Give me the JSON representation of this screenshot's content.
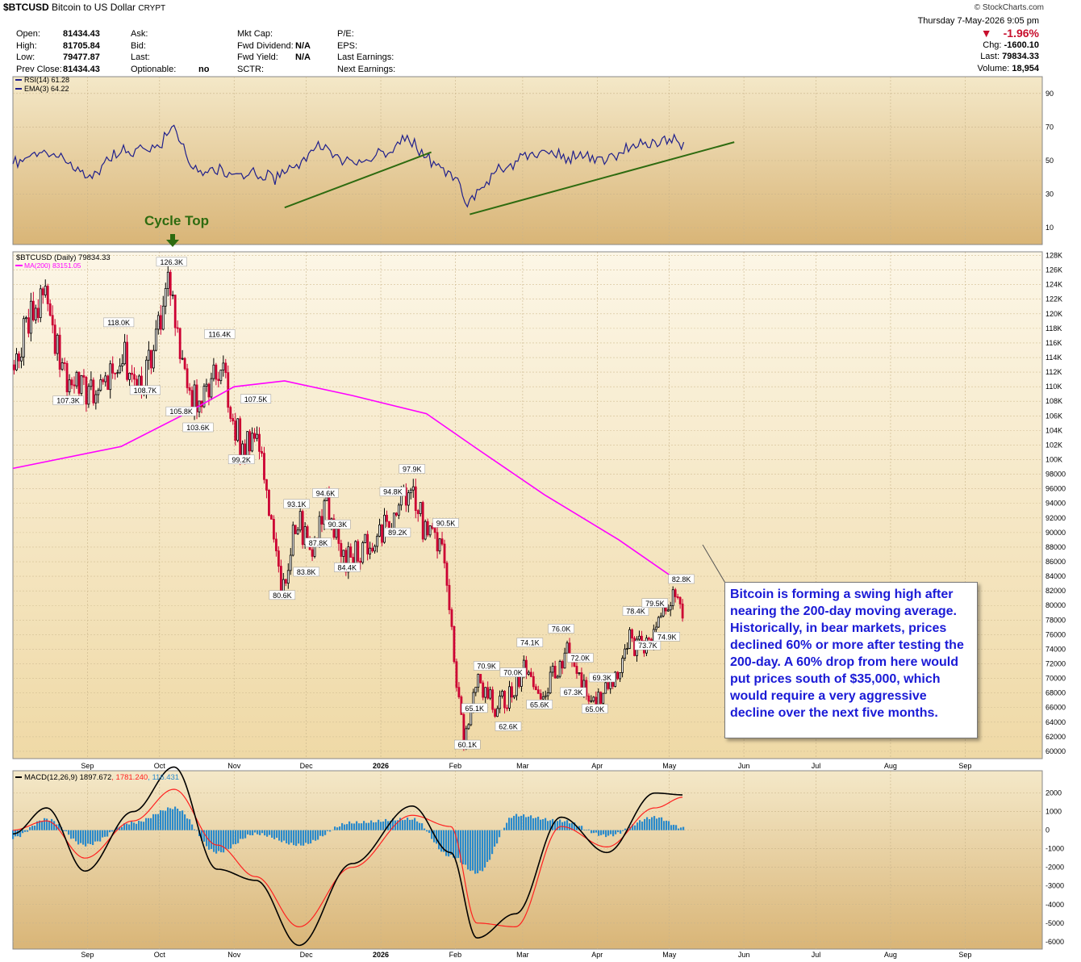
{
  "header": {
    "symbol": "$BTCUSD",
    "name": "Bitcoin to US Dollar",
    "exchange": "CRYPT",
    "source": "© StockCharts.com",
    "datetime": "Thursday  7-May-2026  9:05 pm",
    "quote_left": [
      {
        "label": "Open:",
        "value": "81434.43"
      },
      {
        "label": "High:",
        "value": "81705.84"
      },
      {
        "label": "Low:",
        "value": "79477.87"
      },
      {
        "label": "Prev Close:",
        "value": "81434.43"
      }
    ],
    "quote_mid1": [
      {
        "label": "Ask:",
        "value": ""
      },
      {
        "label": "Bid:",
        "value": ""
      },
      {
        "label": "Last:",
        "value": ""
      },
      {
        "label": "Optionable:",
        "value": "no"
      }
    ],
    "quote_mid2": [
      {
        "label": "Mkt Cap:",
        "value": ""
      },
      {
        "label": "Fwd Dividend:",
        "value": "N/A"
      },
      {
        "label": "Fwd Yield:",
        "value": "N/A"
      },
      {
        "label": "SCTR:",
        "value": ""
      }
    ],
    "quote_mid3": [
      {
        "label": "P/E:"
      },
      {
        "label": "EPS:"
      },
      {
        "label": "Last Earnings:"
      },
      {
        "label": "Next Earnings:"
      }
    ],
    "pct_change": "-1.96%",
    "quote_right": [
      {
        "label": "Chg:",
        "value": "-1600.10"
      },
      {
        "label": "Last:",
        "value": "79834.33"
      },
      {
        "label": "Volume:",
        "value": "18,954"
      }
    ]
  },
  "annotation": {
    "cycle_top": "Cycle Top",
    "callout": "Bitcoin is forming a swing high after nearing the 200-day moving average. Historically, in bear markets, prices declined 60% or more after testing the 200-day. A 60% drop from here would put prices south of $35,000, which would require a very aggressive decline over the next five months."
  },
  "colors": {
    "panel_bg": "#f3e6c2",
    "rsi": "#1f1f8c",
    "ma": "#ff00ff",
    "up": "#000000",
    "down": "#cc0033",
    "trend": "#2e6b10",
    "macd": "#000000",
    "signal": "#ff2020",
    "hist": "#2a8acb",
    "callout_text": "#1a1ad6"
  },
  "chart_data": [
    {
      "type": "line",
      "panel": "rsi",
      "legend": [
        "RSI(14) 61.28",
        "EMA(3) 64.22"
      ],
      "yticks": [
        90,
        70,
        50,
        30,
        10
      ],
      "ylim": [
        0,
        100
      ],
      "x": [
        "2025-08-01",
        "2025-08-10",
        "2025-08-20",
        "2025-09-01",
        "2025-09-15",
        "2025-10-01",
        "2025-10-06",
        "2025-10-15",
        "2025-11-01",
        "2025-11-20",
        "2025-12-05",
        "2025-12-20",
        "2026-01-05",
        "2026-01-10",
        "2026-01-20",
        "2026-02-01",
        "2026-02-05",
        "2026-02-20",
        "2026-03-05",
        "2026-03-20",
        "2026-04-05",
        "2026-04-15",
        "2026-05-01",
        "2026-05-07"
      ],
      "values": [
        48,
        55,
        52,
        40,
        55,
        58,
        70,
        45,
        42,
        40,
        58,
        50,
        55,
        65,
        52,
        40,
        25,
        45,
        55,
        52,
        50,
        58,
        63,
        61
      ],
      "trendlines": [
        {
          "x": [
            "2025-11-22",
            "2026-01-22"
          ],
          "y": [
            22,
            55
          ]
        },
        {
          "x": [
            "2026-02-07",
            "2026-05-28"
          ],
          "y": [
            18,
            61
          ]
        }
      ]
    },
    {
      "type": "candlestick",
      "panel": "price",
      "legend": [
        "$BTCUSD (Daily) 79834.33",
        "MA(200) 83151.05"
      ],
      "ylim": [
        59000,
        128500
      ],
      "yticks": [
        "128K",
        "126K",
        "124K",
        "122K",
        "120K",
        "118K",
        "116K",
        "114K",
        "112K",
        "110K",
        "108K",
        "106K",
        "104K",
        "102K",
        "100K",
        "98000",
        "96000",
        "94000",
        "92000",
        "90000",
        "88000",
        "86000",
        "84000",
        "82000",
        "80000",
        "78000",
        "76000",
        "74000",
        "72000",
        "70000",
        "68000",
        "66000",
        "64000",
        "62000",
        "60000"
      ],
      "x": [
        "2025-08-01",
        "2025-08-14",
        "2025-08-25",
        "2025-09-05",
        "2025-09-15",
        "2025-09-25",
        "2025-10-06",
        "2025-10-11",
        "2025-10-17",
        "2025-10-27",
        "2025-11-04",
        "2025-11-11",
        "2025-11-21",
        "2025-11-28",
        "2025-12-03",
        "2025-12-10",
        "2025-12-18",
        "2025-12-25",
        "2026-01-05",
        "2026-01-14",
        "2026-01-20",
        "2026-01-27",
        "2026-02-05",
        "2026-02-10",
        "2026-02-18",
        "2026-02-24",
        "2026-03-03",
        "2026-03-10",
        "2026-03-20",
        "2026-03-30",
        "2026-04-05",
        "2026-04-15",
        "2026-04-21",
        "2026-04-28",
        "2026-05-04",
        "2026-05-07"
      ],
      "close": [
        113000,
        123000,
        110000,
        108700,
        114500,
        110000,
        124500,
        112000,
        107000,
        113500,
        102000,
        103500,
        82000,
        92000,
        87800,
        94000,
        86000,
        88000,
        91000,
        96500,
        90000,
        88000,
        61000,
        70000,
        66000,
        67500,
        72000,
        68000,
        74000,
        66000,
        68000,
        75000,
        74000,
        78000,
        82000,
        79834
      ],
      "swing_labels": [
        {
          "x": "2025-08-14",
          "y": 124500,
          "text": ""
        },
        {
          "x": "2025-08-24",
          "y": 107300,
          "text": "107.3K"
        },
        {
          "x": "2025-09-14",
          "y": 118000,
          "text": "118.0K"
        },
        {
          "x": "2025-09-25",
          "y": 108700,
          "text": "108.7K"
        },
        {
          "x": "2025-10-06",
          "y": 126300,
          "text": "126.3K"
        },
        {
          "x": "2025-10-10",
          "y": 105800,
          "text": "105.8K"
        },
        {
          "x": "2025-10-17",
          "y": 103600,
          "text": "103.6K"
        },
        {
          "x": "2025-10-26",
          "y": 116400,
          "text": "116.4K"
        },
        {
          "x": "2025-11-04",
          "y": 99200,
          "text": "99.2K"
        },
        {
          "x": "2025-11-10",
          "y": 107500,
          "text": "107.5K"
        },
        {
          "x": "2025-11-21",
          "y": 80600,
          "text": "80.6K"
        },
        {
          "x": "2025-11-27",
          "y": 93100,
          "text": "93.1K"
        },
        {
          "x": "2025-12-01",
          "y": 83800,
          "text": "83.8K"
        },
        {
          "x": "2025-12-06",
          "y": 87800,
          "text": "87.8K"
        },
        {
          "x": "2025-12-09",
          "y": 94600,
          "text": "94.6K"
        },
        {
          "x": "2025-12-14",
          "y": 90300,
          "text": "90.3K"
        },
        {
          "x": "2025-12-18",
          "y": 84400,
          "text": "84.4K"
        },
        {
          "x": "2026-01-06",
          "y": 94800,
          "text": "94.8K"
        },
        {
          "x": "2026-01-08",
          "y": 89200,
          "text": "89.2K"
        },
        {
          "x": "2026-01-14",
          "y": 97900,
          "text": "97.9K"
        },
        {
          "x": "2026-01-28",
          "y": 90500,
          "text": "90.5K"
        },
        {
          "x": "2026-02-06",
          "y": 60100,
          "text": "60.1K"
        },
        {
          "x": "2026-02-09",
          "y": 65100,
          "text": "65.1K"
        },
        {
          "x": "2026-02-14",
          "y": 70900,
          "text": "70.9K"
        },
        {
          "x": "2026-02-23",
          "y": 62600,
          "text": "62.6K"
        },
        {
          "x": "2026-02-25",
          "y": 70000,
          "text": "70.0K"
        },
        {
          "x": "2026-03-04",
          "y": 74100,
          "text": "74.1K"
        },
        {
          "x": "2026-03-08",
          "y": 65600,
          "text": "65.6K"
        },
        {
          "x": "2026-03-17",
          "y": 76000,
          "text": "76.0K"
        },
        {
          "x": "2026-03-22",
          "y": 67300,
          "text": "67.3K"
        },
        {
          "x": "2026-03-25",
          "y": 72000,
          "text": "72.0K"
        },
        {
          "x": "2026-03-31",
          "y": 65000,
          "text": "65.0K"
        },
        {
          "x": "2026-04-03",
          "y": 69300,
          "text": "69.3K"
        },
        {
          "x": "2026-04-17",
          "y": 78400,
          "text": "78.4K"
        },
        {
          "x": "2026-04-22",
          "y": 73700,
          "text": "73.7K"
        },
        {
          "x": "2026-04-25",
          "y": 79500,
          "text": "79.5K"
        },
        {
          "x": "2026-04-30",
          "y": 74900,
          "text": "74.9K"
        },
        {
          "x": "2026-05-06",
          "y": 82800,
          "text": "82.8K"
        }
      ],
      "ma200": {
        "x": [
          "2025-08-01",
          "2025-09-15",
          "2025-10-10",
          "2025-11-01",
          "2025-11-22",
          "2025-12-20",
          "2026-01-20",
          "2026-02-10",
          "2026-03-10",
          "2026-04-10",
          "2026-05-01",
          "2026-05-07"
        ],
        "values": [
          98800,
          101800,
          106000,
          110000,
          110800,
          108800,
          106300,
          101500,
          95200,
          89000,
          84200,
          83151
        ]
      }
    },
    {
      "type": "line",
      "panel": "macd",
      "legend": [
        "MACD(12,26,9)",
        "1897.672",
        "1781.240",
        "116.431"
      ],
      "yticks": [
        2000,
        1000,
        0,
        -1000,
        -2000,
        -3000,
        -4000,
        -5000,
        -6000
      ],
      "ylim": [
        -6400,
        3200
      ],
      "x": [
        "2025-08-01",
        "2025-08-15",
        "2025-08-31",
        "2025-09-20",
        "2025-10-07",
        "2025-10-25",
        "2025-11-10",
        "2025-11-28",
        "2025-12-20",
        "2026-01-14",
        "2026-01-30",
        "2026-02-10",
        "2026-02-26",
        "2026-03-17",
        "2026-04-05",
        "2026-04-25",
        "2026-05-07"
      ],
      "macd": [
        -200,
        1200,
        -2200,
        1000,
        3400,
        -2100,
        -2700,
        -6200,
        -1800,
        1300,
        -1200,
        -5800,
        -4500,
        700,
        -1200,
        2000,
        1897
      ],
      "signal": [
        0,
        500,
        -1500,
        500,
        2200,
        -800,
        -2500,
        -5200,
        -2000,
        800,
        200,
        -5000,
        -5200,
        200,
        -900,
        1200,
        1781
      ],
      "hist": [
        -400,
        600,
        -800,
        400,
        1200,
        -1200,
        -200,
        -800,
        400,
        600,
        -1400,
        -2300,
        800,
        500,
        -300,
        700,
        116
      ]
    }
  ],
  "axis": {
    "months": [
      "Sep",
      "Oct",
      "Nov",
      "Dec",
      "2026",
      "Feb",
      "Mar",
      "Apr",
      "May",
      "Jun",
      "Jul",
      "Aug",
      "Sep"
    ]
  }
}
